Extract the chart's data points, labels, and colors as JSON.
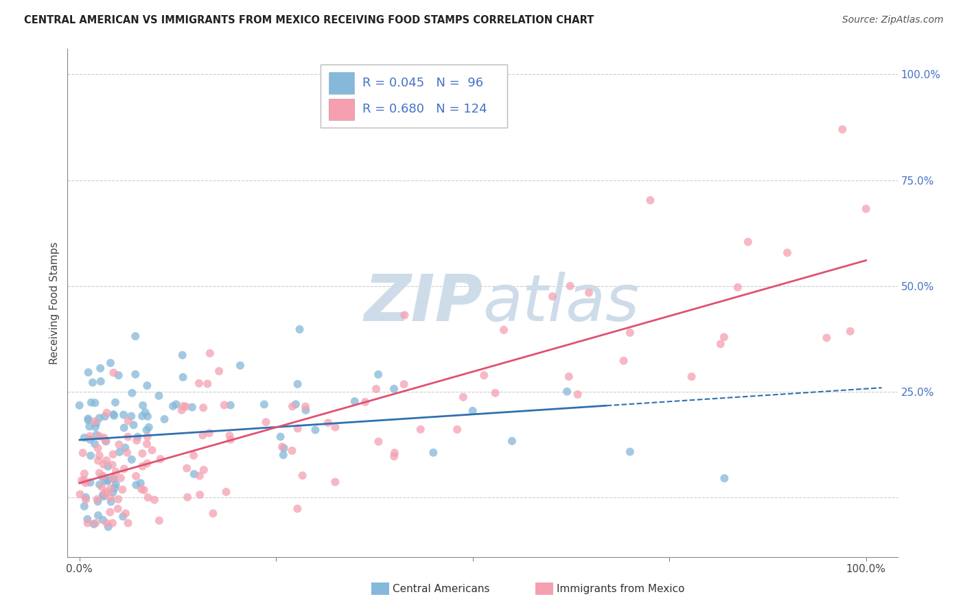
{
  "title": "CENTRAL AMERICAN VS IMMIGRANTS FROM MEXICO RECEIVING FOOD STAMPS CORRELATION CHART",
  "source": "Source: ZipAtlas.com",
  "ylabel": "Receiving Food Stamps",
  "blue_color": "#85b8d9",
  "pink_color": "#f4a0b0",
  "blue_line_color": "#3070b0",
  "pink_line_color": "#e05070",
  "watermark_color": "#cddce8",
  "background_color": "#ffffff",
  "grid_color": "#cccccc",
  "tick_color": "#4472c4",
  "title_fontsize": 10.5,
  "source_fontsize": 10,
  "ylabel_fontsize": 11,
  "tick_fontsize": 11,
  "legend_fontsize": 13,
  "blue_R": 0.045,
  "blue_N": 96,
  "pink_R": 0.68,
  "pink_N": 124,
  "legend_label1": "R = 0.045   N =  96",
  "legend_label2": "R = 0.680   N = 124",
  "bottom_label1": "Central Americans",
  "bottom_label2": "Immigrants from Mexico"
}
